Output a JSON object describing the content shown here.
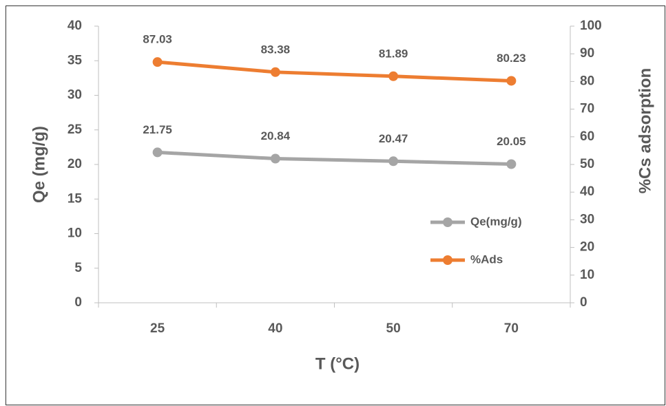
{
  "chart_data": {
    "type": "line",
    "x_label": "T (°C)",
    "y_label": "Qe (mg/g)",
    "y2_label": "%Cs adsorption",
    "categories": [
      "25",
      "40",
      "50",
      "70"
    ],
    "series": [
      {
        "name": "Qe(mg/g)",
        "color": "#a5a5a5",
        "values": [
          21.75,
          20.84,
          20.47,
          20.05
        ]
      },
      {
        "name": "%Ads",
        "color": "#ed7d31",
        "axis": "y2",
        "values": [
          87.03,
          83.38,
          81.89,
          80.23
        ]
      }
    ],
    "ylim": [
      0,
      40
    ],
    "yticks": [
      0,
      5,
      10,
      15,
      20,
      25,
      30,
      35,
      40
    ],
    "y2lim": [
      0,
      100
    ],
    "y2ticks": [
      0,
      10,
      20,
      30,
      40,
      50,
      60,
      70,
      80,
      90,
      100
    ],
    "grid": false
  }
}
